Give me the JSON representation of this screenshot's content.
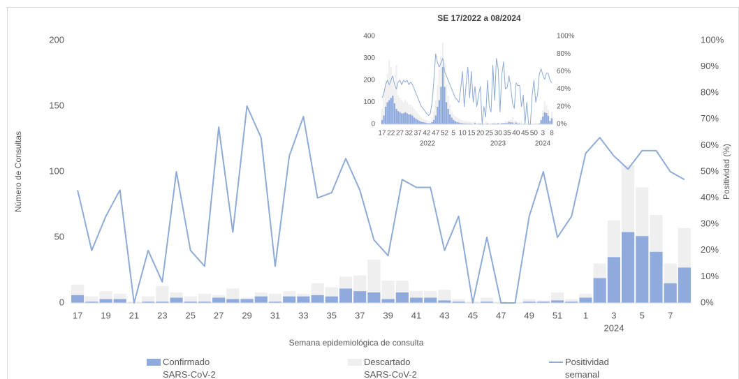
{
  "chart_data": [
    {
      "type": "combo",
      "y_label": "Número de Consultas",
      "y2_label": "Positividad (%)",
      "x_label": "Semana epidemiológica de consulta",
      "categories": [
        "17",
        null,
        "19",
        null,
        "21",
        null,
        "23",
        null,
        "25",
        null,
        "27",
        null,
        "29",
        null,
        "31",
        null,
        "33",
        null,
        "35",
        null,
        "37",
        null,
        "39",
        null,
        "41",
        null,
        "43",
        null,
        "45",
        null,
        "47",
        null,
        "49",
        null,
        "51",
        null,
        "1",
        null,
        "3",
        null,
        "5",
        null,
        "7",
        null
      ],
      "x_group_labels": [
        "2024"
      ],
      "series": [
        {
          "name": "Confirmado SARS-CoV-2",
          "type": "bar",
          "color": "#8faadc",
          "values": [
            6,
            1,
            3,
            3,
            0,
            1,
            1,
            4,
            1,
            1,
            4,
            3,
            3,
            5,
            1,
            5,
            5,
            6,
            5,
            11,
            9,
            8,
            3,
            8,
            4,
            4,
            2,
            1,
            0,
            1,
            0,
            0,
            1,
            1,
            2,
            1,
            4,
            19,
            35,
            54,
            51,
            39,
            15,
            27
          ]
        },
        {
          "name": "Descartado SARS-CoV-2",
          "type": "bar",
          "color": "#efefef",
          "values": [
            8,
            4,
            6,
            4,
            1,
            4,
            12,
            4,
            4,
            6,
            2,
            8,
            1,
            3,
            6,
            4,
            2,
            9,
            7,
            9,
            12,
            25,
            14,
            9,
            5,
            5,
            8,
            2,
            1,
            3,
            1,
            0,
            2,
            1,
            6,
            2,
            3,
            11,
            28,
            51,
            37,
            28,
            15,
            30
          ]
        },
        {
          "name": "Positividad semanal",
          "type": "line",
          "axis": "y2",
          "color": "#8eaad6",
          "values": [
            43,
            20,
            33,
            43,
            0,
            20,
            8,
            50,
            20,
            14,
            67,
            27,
            75,
            63,
            14,
            56,
            71,
            40,
            42,
            55,
            43,
            24,
            18,
            47,
            44,
            44,
            20,
            33,
            0,
            25,
            0,
            0,
            33,
            50,
            25,
            33,
            57,
            63,
            56,
            51,
            58,
            58,
            50,
            47
          ]
        }
      ],
      "ylim": [
        0,
        200
      ],
      "yticks": [
        0,
        50,
        100,
        150,
        200
      ],
      "y2lim": [
        0,
        100
      ],
      "y2ticks": [
        {
          "value": 0,
          "label": "0%"
        },
        {
          "value": 10,
          "label": "10%"
        },
        {
          "value": 20,
          "label": "20%"
        },
        {
          "value": 30,
          "label": "30%"
        },
        {
          "value": 40,
          "label": "40%"
        },
        {
          "value": 50,
          "label": "50%"
        },
        {
          "value": 60,
          "label": "60%"
        },
        {
          "value": 70,
          "label": "70%"
        },
        {
          "value": 80,
          "label": "80%"
        },
        {
          "value": 90,
          "label": "90%"
        },
        {
          "value": 100,
          "label": "100%"
        }
      ],
      "grid": false,
      "legend": "bottom"
    },
    {
      "type": "combo",
      "title": "SE 17/2022 a 08/2024",
      "categories": [
        "17",
        null,
        null,
        null,
        null,
        "22",
        null,
        null,
        null,
        null,
        "27",
        null,
        null,
        null,
        null,
        "32",
        null,
        null,
        null,
        null,
        "37",
        null,
        null,
        null,
        null,
        "42",
        null,
        null,
        null,
        null,
        "47",
        null,
        null,
        null,
        null,
        "52",
        null,
        null,
        null,
        null,
        "5",
        null,
        null,
        null,
        null,
        "10",
        null,
        null,
        null,
        null,
        "15",
        null,
        null,
        null,
        null,
        "20",
        null,
        null,
        null,
        null,
        "25",
        null,
        null,
        null,
        null,
        "30",
        null,
        null,
        null,
        null,
        "35",
        null,
        null,
        null,
        null,
        "40",
        null,
        null,
        null,
        null,
        "45",
        null,
        null,
        null,
        null,
        "50",
        null,
        null,
        null,
        null,
        "3",
        null,
        null,
        null,
        null,
        "8"
      ],
      "x_group_labels": [
        "2022",
        "2023",
        "2024"
      ],
      "series": [
        {
          "type": "bar",
          "color": "#8faadc",
          "values": [
            20,
            40,
            80,
            100,
            110,
            120,
            130,
            95,
            70,
            60,
            55,
            50,
            50,
            55,
            50,
            45,
            45,
            40,
            30,
            25,
            20,
            15,
            12,
            10,
            8,
            6,
            5,
            5,
            10,
            20,
            40,
            80,
            110,
            170,
            260,
            170,
            100,
            70,
            45,
            30,
            20,
            14,
            10,
            8,
            6,
            5,
            4,
            4,
            3,
            3,
            3,
            2,
            6,
            1,
            3,
            3,
            0,
            1,
            1,
            4,
            1,
            1,
            4,
            3,
            3,
            5,
            1,
            5,
            5,
            6,
            5,
            11,
            9,
            8,
            3,
            8,
            4,
            4,
            2,
            1,
            0,
            1,
            0,
            0,
            1,
            1,
            2,
            1,
            4,
            19,
            35,
            54,
            51,
            39,
            15,
            27
          ]
        },
        {
          "type": "bar",
          "color": "#efefef",
          "values": [
            50,
            110,
            120,
            130,
            180,
            140,
            70,
            65,
            200,
            70,
            65,
            60,
            50,
            55,
            50,
            45,
            45,
            40,
            40,
            35,
            30,
            25,
            18,
            15,
            12,
            12,
            10,
            10,
            20,
            40,
            70,
            100,
            140,
            140,
            110,
            110,
            80,
            60,
            45,
            30,
            25,
            21,
            20,
            17,
            14,
            13,
            11,
            10,
            9,
            9,
            7,
            7,
            8,
            4,
            6,
            4,
            1,
            4,
            12,
            4,
            4,
            6,
            2,
            8,
            1,
            3,
            6,
            4,
            2,
            9,
            7,
            9,
            12,
            25,
            14,
            9,
            5,
            5,
            8,
            2,
            1,
            3,
            1,
            0,
            2,
            1,
            6,
            2,
            3,
            11,
            28,
            51,
            37,
            28,
            15,
            30
          ]
        },
        {
          "type": "line",
          "axis": "y2",
          "color": "#8eaad6",
          "values": [
            30,
            35,
            45,
            50,
            45,
            50,
            55,
            45,
            40,
            48,
            50,
            45,
            50,
            48,
            50,
            45,
            48,
            45,
            40,
            35,
            30,
            25,
            20,
            18,
            15,
            12,
            10,
            12,
            25,
            50,
            80,
            70,
            65,
            70,
            75,
            60,
            55,
            50,
            45,
            40,
            35,
            30,
            28,
            25,
            40,
            60,
            20,
            45,
            65,
            30,
            60,
            25,
            43,
            20,
            33,
            43,
            0,
            20,
            8,
            50,
            20,
            14,
            67,
            27,
            75,
            63,
            14,
            56,
            71,
            40,
            42,
            55,
            43,
            24,
            18,
            47,
            44,
            44,
            20,
            33,
            0,
            25,
            0,
            0,
            33,
            50,
            25,
            33,
            57,
            63,
            56,
            51,
            58,
            58,
            50,
            47
          ]
        }
      ],
      "ylim": [
        0,
        400
      ],
      "yticks": [
        0,
        100,
        200,
        300,
        400
      ],
      "y2lim": [
        0,
        100
      ],
      "y2ticks": [
        {
          "value": 0,
          "label": "0%"
        },
        {
          "value": 20,
          "label": "20%"
        },
        {
          "value": 40,
          "label": "40%"
        },
        {
          "value": 60,
          "label": "60%"
        },
        {
          "value": 80,
          "label": "80%"
        },
        {
          "value": 100,
          "label": "100%"
        }
      ],
      "grid": false
    }
  ]
}
